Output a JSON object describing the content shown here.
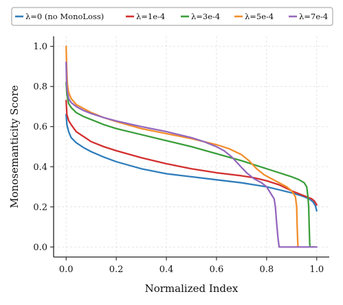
{
  "chart_data": {
    "type": "line",
    "title": "",
    "xlabel": "Normalized Index",
    "ylabel": "Monosemanticity Score",
    "xlim": [
      -0.05,
      1.05
    ],
    "ylim": [
      -0.05,
      1.05
    ],
    "xticks": [
      0.0,
      0.2,
      0.4,
      0.6,
      0.8,
      1.0
    ],
    "yticks": [
      0.0,
      0.2,
      0.4,
      0.6,
      0.8,
      1.0
    ],
    "xtick_labels": [
      "0.0",
      "0.2",
      "0.4",
      "0.6",
      "0.8",
      "1.0"
    ],
    "ytick_labels": [
      "0.0",
      "0.2",
      "0.4",
      "0.6",
      "0.8",
      "1.0"
    ],
    "grid": true,
    "legend_position": "top-center",
    "series": [
      {
        "name": "λ=0 (no MonoLoss)",
        "color": "#2f7dbb",
        "x": [
          0.0,
          0.003,
          0.01,
          0.02,
          0.04,
          0.07,
          0.1,
          0.15,
          0.2,
          0.3,
          0.4,
          0.5,
          0.6,
          0.7,
          0.8,
          0.85,
          0.9,
          0.94,
          0.97,
          0.985,
          0.995,
          1.0
        ],
        "y": [
          0.66,
          0.61,
          0.575,
          0.545,
          0.52,
          0.495,
          0.475,
          0.448,
          0.425,
          0.39,
          0.365,
          0.35,
          0.335,
          0.32,
          0.3,
          0.285,
          0.27,
          0.255,
          0.24,
          0.225,
          0.205,
          0.18
        ]
      },
      {
        "name": "λ=1e-4",
        "color": "#d32f2f",
        "x": [
          0.0,
          0.003,
          0.01,
          0.02,
          0.04,
          0.07,
          0.1,
          0.15,
          0.2,
          0.3,
          0.4,
          0.5,
          0.6,
          0.7,
          0.75,
          0.8,
          0.85,
          0.9,
          0.95,
          0.98,
          0.99,
          1.0
        ],
        "y": [
          0.73,
          0.66,
          0.63,
          0.61,
          0.575,
          0.55,
          0.525,
          0.5,
          0.48,
          0.445,
          0.415,
          0.39,
          0.37,
          0.355,
          0.345,
          0.33,
          0.31,
          0.28,
          0.255,
          0.24,
          0.23,
          0.21
        ]
      },
      {
        "name": "λ=3e-4",
        "color": "#3a9e3a",
        "x": [
          0.0,
          0.003,
          0.01,
          0.02,
          0.04,
          0.07,
          0.1,
          0.15,
          0.2,
          0.3,
          0.4,
          0.5,
          0.6,
          0.7,
          0.8,
          0.85,
          0.9,
          0.93,
          0.95,
          0.96,
          0.965,
          0.968,
          0.97,
          0.972,
          0.973,
          0.99
        ],
        "y": [
          0.82,
          0.76,
          0.715,
          0.695,
          0.67,
          0.65,
          0.635,
          0.61,
          0.59,
          0.56,
          0.53,
          0.5,
          0.465,
          0.43,
          0.39,
          0.37,
          0.35,
          0.335,
          0.32,
          0.3,
          0.25,
          0.2,
          0.1,
          0.02,
          0.0,
          0.0
        ]
      },
      {
        "name": "λ=5e-4",
        "color": "#f28e2b",
        "x": [
          0.0,
          0.002,
          0.005,
          0.01,
          0.02,
          0.04,
          0.07,
          0.1,
          0.15,
          0.2,
          0.3,
          0.4,
          0.5,
          0.6,
          0.65,
          0.7,
          0.73,
          0.76,
          0.79,
          0.82,
          0.85,
          0.88,
          0.9,
          0.915,
          0.92,
          0.922,
          0.925,
          0.93
        ],
        "y": [
          1.0,
          0.9,
          0.81,
          0.77,
          0.74,
          0.71,
          0.69,
          0.67,
          0.645,
          0.625,
          0.59,
          0.565,
          0.54,
          0.51,
          0.49,
          0.46,
          0.43,
          0.39,
          0.36,
          0.34,
          0.32,
          0.3,
          0.28,
          0.25,
          0.2,
          0.1,
          0.0,
          0.0
        ]
      },
      {
        "name": "λ=7e-4",
        "color": "#9467bd",
        "x": [
          0.0,
          0.002,
          0.005,
          0.01,
          0.02,
          0.04,
          0.07,
          0.1,
          0.15,
          0.2,
          0.3,
          0.4,
          0.5,
          0.55,
          0.6,
          0.63,
          0.66,
          0.69,
          0.72,
          0.75,
          0.78,
          0.8,
          0.81,
          0.82,
          0.83,
          0.835,
          0.84,
          0.845,
          0.85,
          0.86,
          0.9,
          0.95,
          0.985,
          0.995,
          1.0
        ],
        "y": [
          0.92,
          0.81,
          0.77,
          0.74,
          0.72,
          0.7,
          0.68,
          0.665,
          0.645,
          0.628,
          0.6,
          0.575,
          0.545,
          0.525,
          0.5,
          0.48,
          0.45,
          0.41,
          0.37,
          0.34,
          0.32,
          0.3,
          0.28,
          0.26,
          0.24,
          0.2,
          0.12,
          0.05,
          0.0,
          0.0,
          0.0,
          0.0,
          0.0,
          0.0,
          0.0
        ]
      }
    ]
  }
}
